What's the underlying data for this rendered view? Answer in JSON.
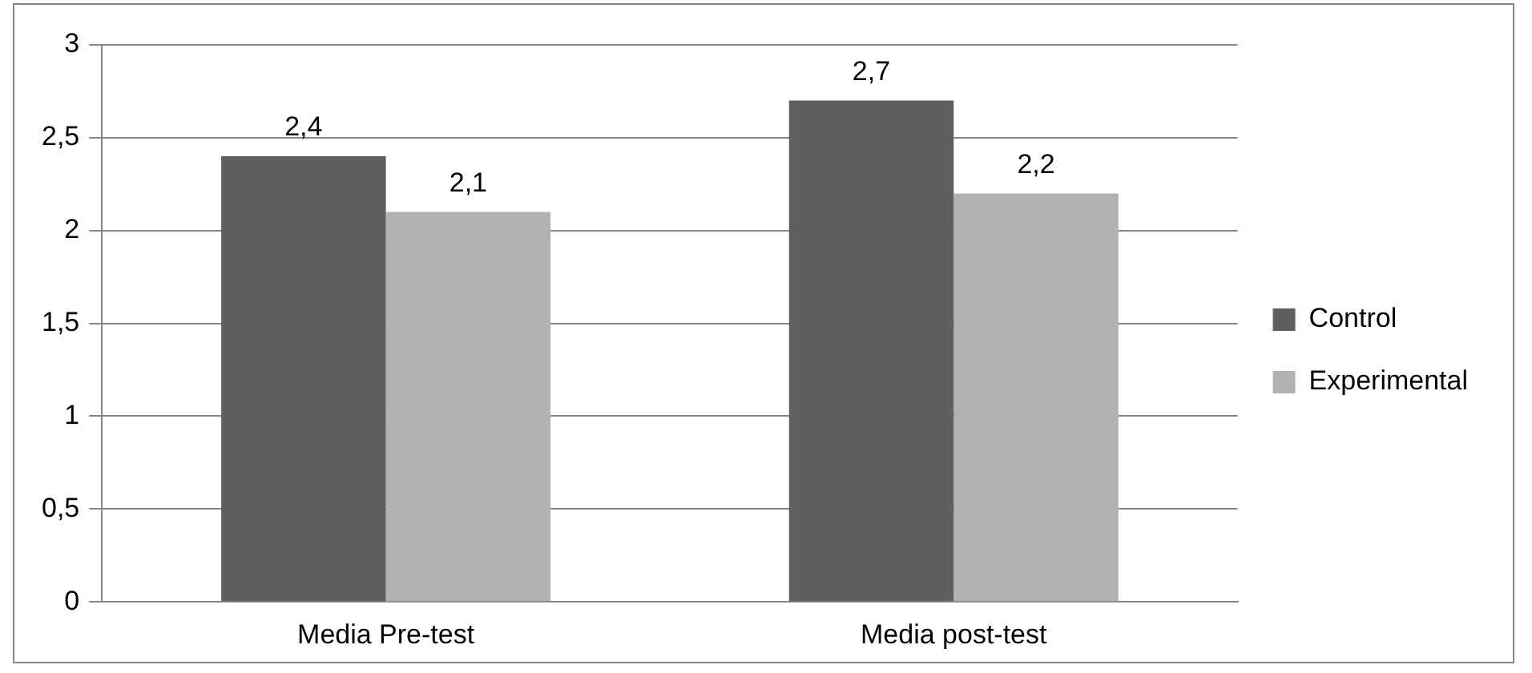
{
  "chart_data": {
    "type": "bar",
    "categories": [
      "Media Pre-test",
      "Media post-test"
    ],
    "series": [
      {
        "name": "Control",
        "color": "#5f5f5f",
        "values": [
          2.4,
          2.7
        ],
        "value_labels": [
          "2,4",
          "2,7"
        ]
      },
      {
        "name": "Experimental",
        "color": "#b2b2b2",
        "values": [
          2.1,
          2.2
        ],
        "value_labels": [
          "2,1",
          "2,2"
        ]
      }
    ],
    "ylim": [
      0,
      3
    ],
    "yticks": [
      0,
      {
        "value": 0.5,
        "label": "0,5"
      },
      1,
      {
        "value": 1.5,
        "label": "1,5"
      },
      2,
      {
        "value": 2.5,
        "label": "2,5"
      },
      3
    ],
    "grid": "y",
    "legend": "right"
  }
}
